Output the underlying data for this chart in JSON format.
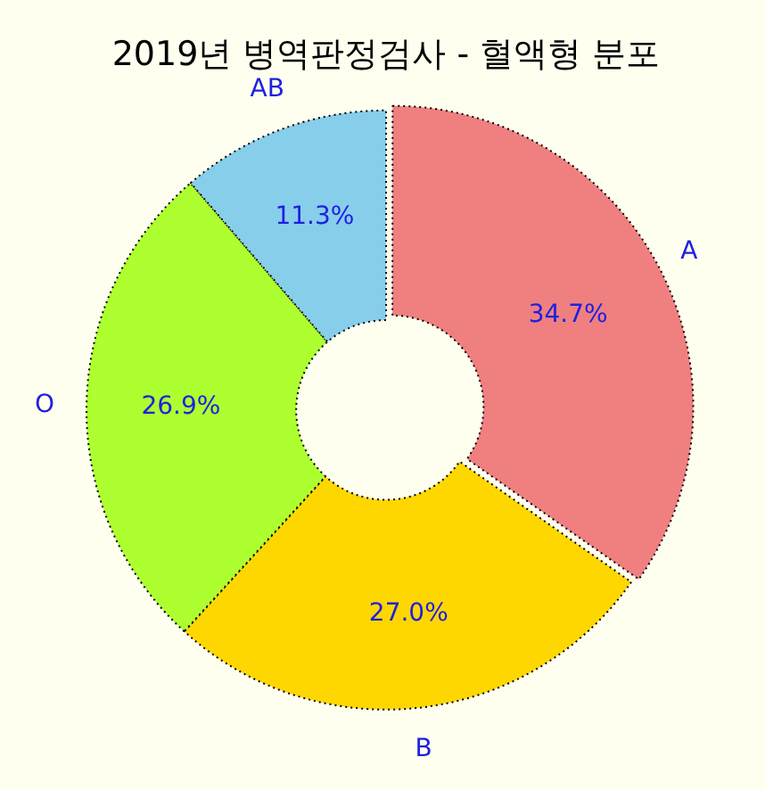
{
  "chart_data": {
    "type": "donut",
    "title": "2019년 병역판정검사 - 혈액형 분포",
    "categories": [
      "A",
      "B",
      "O",
      "AB"
    ],
    "values": [
      34.7,
      27.0,
      26.9,
      11.3
    ],
    "value_labels": [
      "34.7%",
      "27.0%",
      "26.9%",
      "11.3%"
    ],
    "colors": [
      "#f08080",
      "#ffd700",
      "#adff2f",
      "#87ceeb"
    ],
    "legend": false
  }
}
